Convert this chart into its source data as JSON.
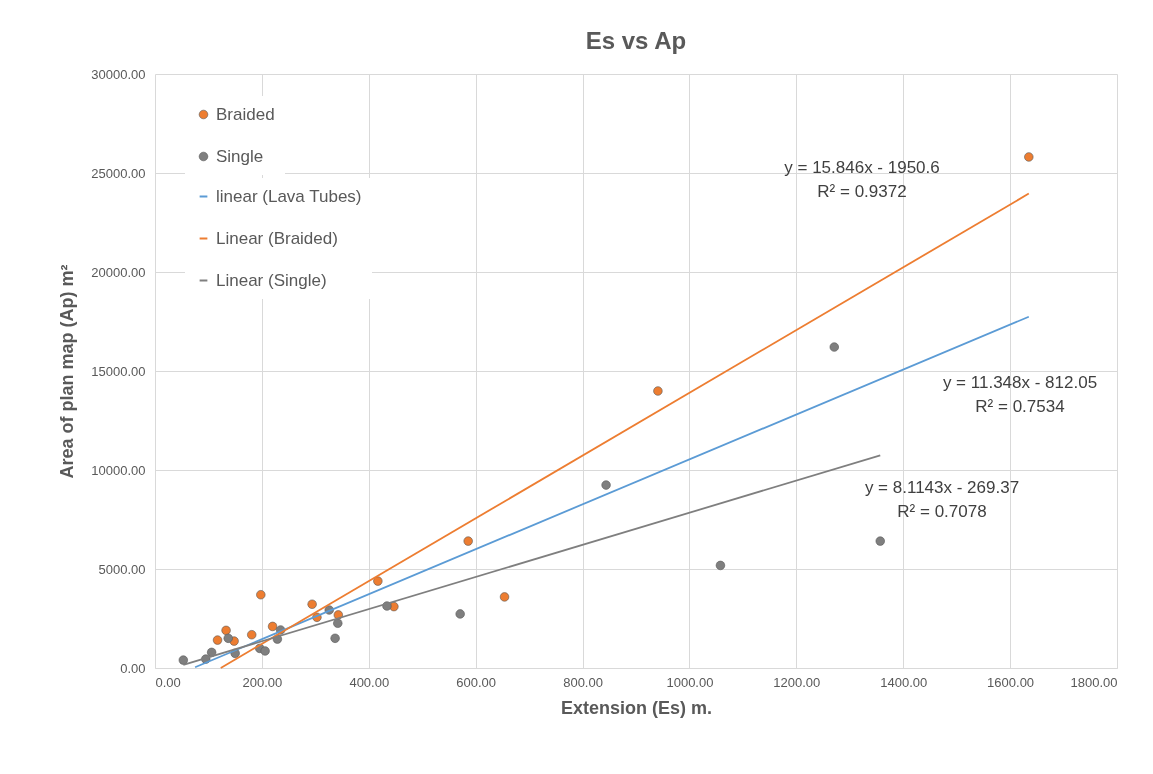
{
  "chart_data": {
    "type": "scatter",
    "title": "Es vs Ap",
    "xlabel": "Extension (Es) m.",
    "ylabel": "Area of plan map (Ap) m²",
    "xlim": [
      0,
      1800
    ],
    "ylim": [
      0,
      30000
    ],
    "xticks": [
      {
        "value": 0,
        "label": "0.00"
      },
      {
        "value": 200,
        "label": "200.00"
      },
      {
        "value": 400,
        "label": "400.00"
      },
      {
        "value": 600,
        "label": "600.00"
      },
      {
        "value": 800,
        "label": "800.00"
      },
      {
        "value": 1000,
        "label": "1000.00"
      },
      {
        "value": 1200,
        "label": "1200.00"
      },
      {
        "value": 1400,
        "label": "1400.00"
      },
      {
        "value": 1600,
        "label": "1600.00"
      },
      {
        "value": 1800,
        "label": "1800.00"
      }
    ],
    "yticks": [
      {
        "value": 0,
        "label": "0.00"
      },
      {
        "value": 5000,
        "label": "5000.00"
      },
      {
        "value": 10000,
        "label": "10000.00"
      },
      {
        "value": 15000,
        "label": "15000.00"
      },
      {
        "value": 20000,
        "label": "20000.00"
      },
      {
        "value": 25000,
        "label": "25000.00"
      },
      {
        "value": 30000,
        "label": "30000.00"
      }
    ],
    "grid": true,
    "legend": "top left",
    "series": [
      {
        "name": "Braided",
        "color": "#ed7d31",
        "x": [
          117,
          133,
          148,
          181,
          198,
          220,
          294,
          303,
          343,
          417,
          447,
          586,
          654,
          941,
          1635
        ],
        "values": [
          1410,
          1900,
          1360,
          1680,
          3700,
          2100,
          3220,
          2560,
          2680,
          4390,
          3100,
          6410,
          3590,
          13990,
          25810
        ]
      },
      {
        "name": "Single",
        "color": "#7f7f7f",
        "x": [
          53,
          95,
          106,
          137,
          150,
          196,
          206,
          229,
          235,
          326,
          337,
          342,
          434,
          571,
          844,
          1058,
          1271,
          1357
        ],
        "values": [
          400,
          450,
          790,
          1500,
          740,
          990,
          860,
          1460,
          1920,
          2930,
          1500,
          2260,
          3130,
          2730,
          9240,
          5180,
          16210,
          6410
        ]
      },
      {
        "name": "linear (Lava Tubes)",
        "type": "line",
        "color": "#5b9bd5",
        "x": [
          75,
          1635
        ],
        "values": [
          40,
          17740
        ]
      },
      {
        "name": "Linear (Braided)",
        "type": "line",
        "color": "#ed7d31",
        "x": [
          123,
          1635
        ],
        "values": [
          0,
          23960
        ]
      },
      {
        "name": "Linear (Single)",
        "type": "line",
        "color": "#7f7f7f",
        "x": [
          53,
          1357
        ],
        "values": [
          160,
          10740
        ]
      }
    ],
    "annotations": [
      "y = 15.846x - 1950.6\nR² = 0.9372",
      "y = 11.348x - 812.05\nR² = 0.7534",
      "y = 8.1143x - 269.37\nR² = 0.7078"
    ]
  }
}
